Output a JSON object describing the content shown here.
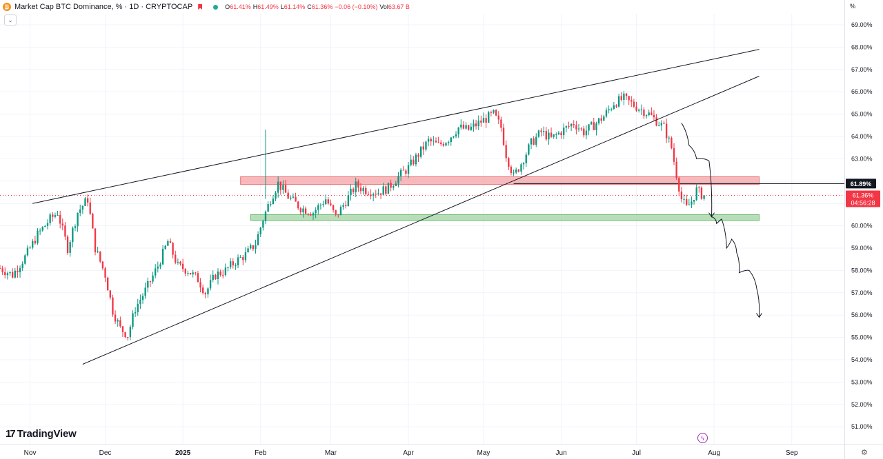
{
  "header": {
    "coin_glyph": "₿",
    "symbol": "Market Cap BTC Dominance, % · 1D · CRYPTOCAP",
    "ohlc": [
      {
        "key": "O",
        "value": "61.41%"
      },
      {
        "key": "H",
        "value": "61.49%"
      },
      {
        "key": "L",
        "value": "61.14%"
      },
      {
        "key": "C",
        "value": "61.36%"
      },
      {
        "key": "",
        "value": "−0.06 (−0.10%)"
      },
      {
        "key": "Vol",
        "value": "63.67 B"
      }
    ],
    "collapse_glyph": "⌄"
  },
  "axis_unit": "%",
  "logo": {
    "mark": "17",
    "name": "TradingView"
  },
  "settings_glyph": "⚙",
  "bolt_glyph": "ϟ",
  "colors": {
    "up": "#089981",
    "down": "#f23645",
    "resistance_zone": "#f4a1a6",
    "support_zone": "#a5d6a7",
    "trendline": "#131722",
    "grid": "#f0f3fa",
    "price_label_bg": "#f23645",
    "level_label_bg": "#131722"
  },
  "chart_data": {
    "type": "candlestick",
    "title": "Market Cap BTC Dominance, % · 1D · CRYPTOCAP",
    "x_ticks": [
      "Nov",
      "Dec",
      "2025",
      "Feb",
      "Mar",
      "Apr",
      "May",
      "Jun",
      "Jul",
      "Aug",
      "Sep"
    ],
    "y_ticks": [
      "69.00%",
      "68.00%",
      "67.00%",
      "66.00%",
      "65.00%",
      "64.00%",
      "63.00%",
      "62.00%",
      "61.00%",
      "60.00%",
      "59.00%",
      "58.00%",
      "57.00%",
      "56.00%",
      "55.00%",
      "54.00%",
      "53.00%",
      "52.00%",
      "51.00%"
    ],
    "ylim": [
      50.5,
      69.5
    ],
    "x_range": [
      "2024-10-20",
      "2025-09-22"
    ],
    "current_price_label": "61.36%",
    "countdown_label": "04:56:28",
    "level_label": "61.89%",
    "level_value": 61.89,
    "current_price": 61.36,
    "closes": [
      {
        "date": "2024-10-20",
        "close": 58.1
      },
      {
        "date": "2024-10-25",
        "close": 57.8
      },
      {
        "date": "2024-10-30",
        "close": 58.6
      },
      {
        "date": "2024-11-04",
        "close": 59.6
      },
      {
        "date": "2024-11-09",
        "close": 60.3
      },
      {
        "date": "2024-11-12",
        "close": 60.6
      },
      {
        "date": "2024-11-16",
        "close": 59.0
      },
      {
        "date": "2024-11-20",
        "close": 60.6
      },
      {
        "date": "2024-11-24",
        "close": 61.2
      },
      {
        "date": "2024-11-27",
        "close": 59.0
      },
      {
        "date": "2024-12-01",
        "close": 57.8
      },
      {
        "date": "2024-12-04",
        "close": 56.2
      },
      {
        "date": "2024-12-07",
        "close": 55.4
      },
      {
        "date": "2024-12-10",
        "close": 55.1
      },
      {
        "date": "2024-12-13",
        "close": 56.3
      },
      {
        "date": "2024-12-18",
        "close": 57.3
      },
      {
        "date": "2024-12-22",
        "close": 58.2
      },
      {
        "date": "2024-12-26",
        "close": 59.3
      },
      {
        "date": "2024-12-30",
        "close": 58.2
      },
      {
        "date": "2025-01-03",
        "close": 58.0
      },
      {
        "date": "2025-01-07",
        "close": 57.6
      },
      {
        "date": "2025-01-10",
        "close": 57.0
      },
      {
        "date": "2025-01-14",
        "close": 57.8
      },
      {
        "date": "2025-01-18",
        "close": 58.0
      },
      {
        "date": "2025-01-22",
        "close": 58.4
      },
      {
        "date": "2025-01-26",
        "close": 58.7
      },
      {
        "date": "2025-01-30",
        "close": 59.2
      },
      {
        "date": "2025-02-02",
        "close": 60.3
      },
      {
        "date": "2025-02-05",
        "close": 61.2
      },
      {
        "date": "2025-02-08",
        "close": 61.9
      },
      {
        "date": "2025-02-12",
        "close": 61.3
      },
      {
        "date": "2025-02-17",
        "close": 60.8
      },
      {
        "date": "2025-02-22",
        "close": 60.6
      },
      {
        "date": "2025-02-27",
        "close": 61.2
      },
      {
        "date": "2025-03-03",
        "close": 60.4
      },
      {
        "date": "2025-03-07",
        "close": 61.1
      },
      {
        "date": "2025-03-11",
        "close": 61.8
      },
      {
        "date": "2025-03-15",
        "close": 61.6
      },
      {
        "date": "2025-03-20",
        "close": 61.5
      },
      {
        "date": "2025-03-24",
        "close": 61.7
      },
      {
        "date": "2025-03-28",
        "close": 62.2
      },
      {
        "date": "2025-04-01",
        "close": 62.6
      },
      {
        "date": "2025-04-05",
        "close": 63.2
      },
      {
        "date": "2025-04-09",
        "close": 63.8
      },
      {
        "date": "2025-04-13",
        "close": 63.6
      },
      {
        "date": "2025-04-17",
        "close": 63.9
      },
      {
        "date": "2025-04-21",
        "close": 64.4
      },
      {
        "date": "2025-04-25",
        "close": 64.3
      },
      {
        "date": "2025-04-29",
        "close": 64.6
      },
      {
        "date": "2025-05-02",
        "close": 64.8
      },
      {
        "date": "2025-05-05",
        "close": 65.0
      },
      {
        "date": "2025-05-08",
        "close": 64.4
      },
      {
        "date": "2025-05-10",
        "close": 63.2
      },
      {
        "date": "2025-05-13",
        "close": 62.2
      },
      {
        "date": "2025-05-16",
        "close": 62.8
      },
      {
        "date": "2025-05-20",
        "close": 63.7
      },
      {
        "date": "2025-05-24",
        "close": 64.2
      },
      {
        "date": "2025-05-28",
        "close": 63.9
      },
      {
        "date": "2025-06-02",
        "close": 64.3
      },
      {
        "date": "2025-06-06",
        "close": 64.6
      },
      {
        "date": "2025-06-10",
        "close": 64.2
      },
      {
        "date": "2025-06-14",
        "close": 64.5
      },
      {
        "date": "2025-06-18",
        "close": 64.9
      },
      {
        "date": "2025-06-22",
        "close": 65.5
      },
      {
        "date": "2025-06-26",
        "close": 65.7
      },
      {
        "date": "2025-06-30",
        "close": 65.4
      },
      {
        "date": "2025-07-03",
        "close": 65.2
      },
      {
        "date": "2025-07-06",
        "close": 65.0
      },
      {
        "date": "2025-07-09",
        "close": 64.7
      },
      {
        "date": "2025-07-12",
        "close": 64.4
      },
      {
        "date": "2025-07-15",
        "close": 63.5
      },
      {
        "date": "2025-07-17",
        "close": 62.3
      },
      {
        "date": "2025-07-19",
        "close": 61.2
      },
      {
        "date": "2025-07-21",
        "close": 60.8
      },
      {
        "date": "2025-07-23",
        "close": 61.1
      },
      {
        "date": "2025-07-25",
        "close": 61.6
      },
      {
        "date": "2025-07-27",
        "close": 61.4
      },
      {
        "date": "2025-07-28",
        "close": 61.36
      }
    ],
    "resistance_zone": {
      "start": "2025-01-24",
      "end": "2025-08-19",
      "low": 61.85,
      "high": 62.2
    },
    "support_zone": {
      "start": "2025-01-28",
      "end": "2025-08-19",
      "low": 60.24,
      "high": 60.5
    },
    "trendlines": [
      {
        "from": {
          "date": "2024-11-02",
          "value": 61.0
        },
        "to": {
          "date": "2025-08-19",
          "value": 67.9
        }
      },
      {
        "from": {
          "date": "2024-11-22",
          "value": 53.8
        },
        "to": {
          "date": "2025-08-19",
          "value": 66.7
        }
      }
    ],
    "projection_path": [
      {
        "date": "2025-07-19",
        "value": 64.6
      },
      {
        "date": "2025-07-22",
        "value": 63.6
      },
      {
        "date": "2025-07-25",
        "value": 63.0
      },
      {
        "date": "2025-07-30",
        "value": 62.9
      },
      {
        "date": "2025-07-31",
        "value": 60.4
      },
      {
        "date": "2025-08-02",
        "value": 60.1
      },
      {
        "date": "2025-08-04",
        "value": 60.3
      },
      {
        "date": "2025-08-06",
        "value": 59.0
      },
      {
        "date": "2025-08-08",
        "value": 59.4
      },
      {
        "date": "2025-08-10",
        "value": 58.8
      },
      {
        "date": "2025-08-11",
        "value": 57.9
      },
      {
        "date": "2025-08-15",
        "value": 58.0
      },
      {
        "date": "2025-08-18",
        "value": 57.2
      },
      {
        "date": "2025-08-19",
        "value": 55.9
      }
    ]
  }
}
